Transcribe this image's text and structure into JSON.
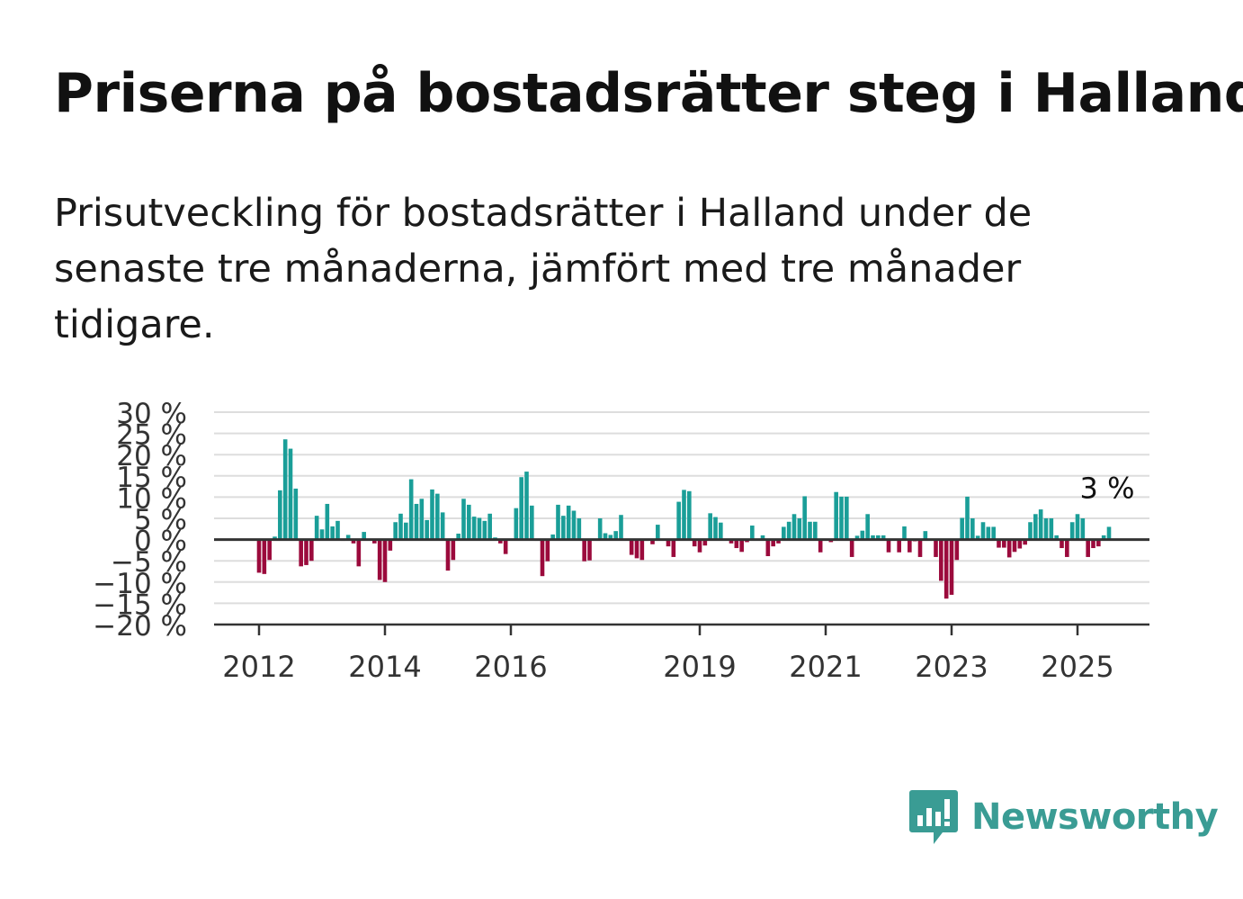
{
  "header": {
    "title": "Priserna på bostadsrätter steg i Halland",
    "subtitle": "Prisutveckling för bostadsrätter i Halland under de senaste tre månaderna, jämfört med tre månader tidigare."
  },
  "brand": {
    "name": "Newsworthy",
    "icon": "newsworthy-chart-bubble-icon",
    "color": "#3a9c94"
  },
  "chart_data": {
    "type": "bar",
    "x_start": "2012-01",
    "x_step": "month",
    "y_ticks": [
      30,
      25,
      20,
      15,
      10,
      5,
      0,
      -5,
      -10,
      -15,
      -20
    ],
    "y_tick_labels": [
      "30 %",
      "25 %",
      "20 %",
      "15 %",
      "10 %",
      "5 %",
      "0 %",
      "−5 %",
      "−10 %",
      "−15 %",
      "−20 %"
    ],
    "x_tick_labels": [
      "2012",
      "2014",
      "2016",
      "2019",
      "2021",
      "2023",
      "2025"
    ],
    "ylim": [
      -20,
      30
    ],
    "grid": true,
    "colors": {
      "positive": "#1a9e98",
      "negative": "#9b0a3c",
      "grid": "#dddddd",
      "axis": "#333333"
    },
    "annotation": {
      "text": "3 %"
    },
    "values": [
      -7.8,
      -8.1,
      -4.8,
      0.7,
      11.6,
      23.6,
      21.4,
      12.0,
      -6.3,
      -6.0,
      -5.0,
      5.6,
      2.4,
      8.4,
      3.1,
      4.4,
      -0.3,
      1.1,
      -0.9,
      -6.3,
      1.8,
      0.0,
      -0.9,
      -9.5,
      -10.0,
      -2.6,
      4.1,
      6.1,
      4.0,
      14.2,
      8.4,
      9.6,
      4.6,
      11.8,
      10.8,
      6.4,
      -7.3,
      -4.8,
      1.4,
      9.6,
      8.2,
      5.4,
      5.1,
      4.4,
      6.1,
      0.5,
      -0.9,
      -3.4,
      0.0,
      7.4,
      14.7,
      16.0,
      8.0,
      -0.3,
      -8.6,
      -5.1,
      1.2,
      8.2,
      5.6,
      8.0,
      6.8,
      5.0,
      -5.1,
      -4.9,
      0.0,
      5.0,
      1.5,
      1.1,
      2.0,
      5.8,
      0.0,
      -3.6,
      -4.4,
      -4.8,
      0.0,
      -1.1,
      3.5,
      0.0,
      -1.6,
      -4.1,
      8.9,
      11.7,
      11.4,
      -1.6,
      -3.0,
      -1.4,
      6.2,
      5.3,
      4.0,
      0.0,
      -0.9,
      -2.0,
      -2.9,
      -0.6,
      3.3,
      0.0,
      1.0,
      -3.9,
      -1.6,
      -0.9,
      3.0,
      4.2,
      6.0,
      5.0,
      10.2,
      4.2,
      4.2,
      -3.0,
      0.0,
      -0.6,
      11.2,
      10.1,
      10.1,
      -4.1,
      0.9,
      2.1,
      6.0,
      1.0,
      1.0,
      1.0,
      -3.0,
      0.0,
      -3.0,
      3.1,
      -3.0,
      -0.4,
      -4.1,
      2.0,
      0.0,
      -4.1,
      -9.7,
      -13.9,
      -13.0,
      -4.8,
      5.1,
      10.1,
      5.0,
      0.9,
      4.1,
      3.0,
      3.0,
      -1.9,
      -1.9,
      -4.2,
      -2.9,
      -2.1,
      -1.2,
      4.1,
      6.0,
      7.1,
      5.0,
      5.0,
      1.0,
      -2.0,
      -4.1,
      4.1,
      6.0,
      5.0,
      -4.1,
      -2.0,
      -1.6,
      1.0,
      3.0
    ]
  }
}
